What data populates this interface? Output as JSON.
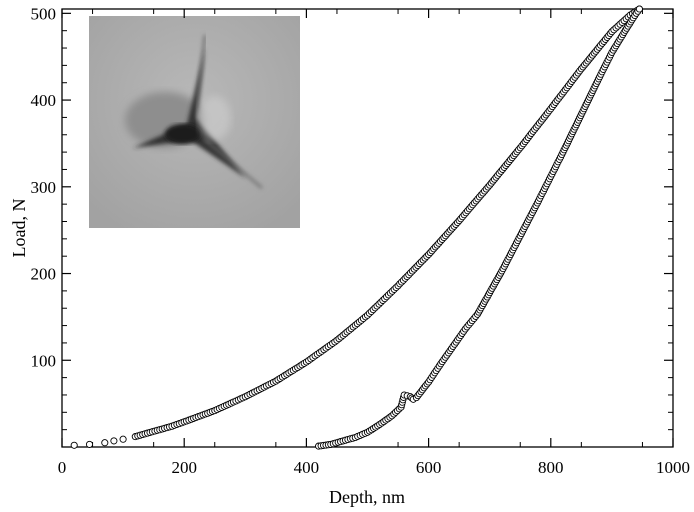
{
  "chart_data": {
    "type": "scatter",
    "xlabel": "Depth, nm",
    "ylabel": "Load, N",
    "xlim": [
      0,
      1000
    ],
    "ylim": [
      0,
      505
    ],
    "x_ticks": [
      0,
      200,
      400,
      600,
      800,
      1000
    ],
    "y_ticks": [
      100,
      200,
      300,
      400,
      500
    ],
    "x_tick_labels": [
      "0",
      "200",
      "400",
      "600",
      "800",
      "1000"
    ],
    "y_tick_labels": [
      "100",
      "200",
      "300",
      "400",
      "500"
    ],
    "grid": false,
    "legend": "none",
    "marker": "open-circle",
    "series": [
      {
        "x": [
          20,
          45,
          70,
          85,
          100,
          120,
          140,
          160,
          180,
          200,
          250,
          300,
          350,
          400,
          450,
          500,
          550,
          600,
          650,
          700,
          750,
          800,
          850,
          900,
          930,
          945
        ],
        "y": [
          2,
          3,
          5,
          7,
          9,
          12,
          16,
          20,
          24,
          29,
          42,
          58,
          76,
          98,
          123,
          152,
          186,
          222,
          261,
          302,
          345,
          390,
          436,
          479,
          498,
          505
        ]
      },
      {
        "x": [
          420,
          440,
          460,
          480,
          500,
          520,
          540,
          555,
          560,
          570,
          575,
          580,
          600,
          620,
          640,
          660,
          680,
          700,
          720,
          740,
          760,
          780,
          800,
          820,
          840,
          860,
          880,
          900,
          920,
          935,
          945
        ],
        "y": [
          1,
          3,
          7,
          11,
          17,
          26,
          36,
          46,
          60,
          58,
          55,
          57,
          75,
          96,
          116,
          136,
          153,
          178,
          203,
          230,
          257,
          284,
          312,
          340,
          369,
          398,
          427,
          455,
          478,
          495,
          505
        ]
      }
    ],
    "inset": {
      "description": "micrograph of indentation imprint"
    }
  }
}
